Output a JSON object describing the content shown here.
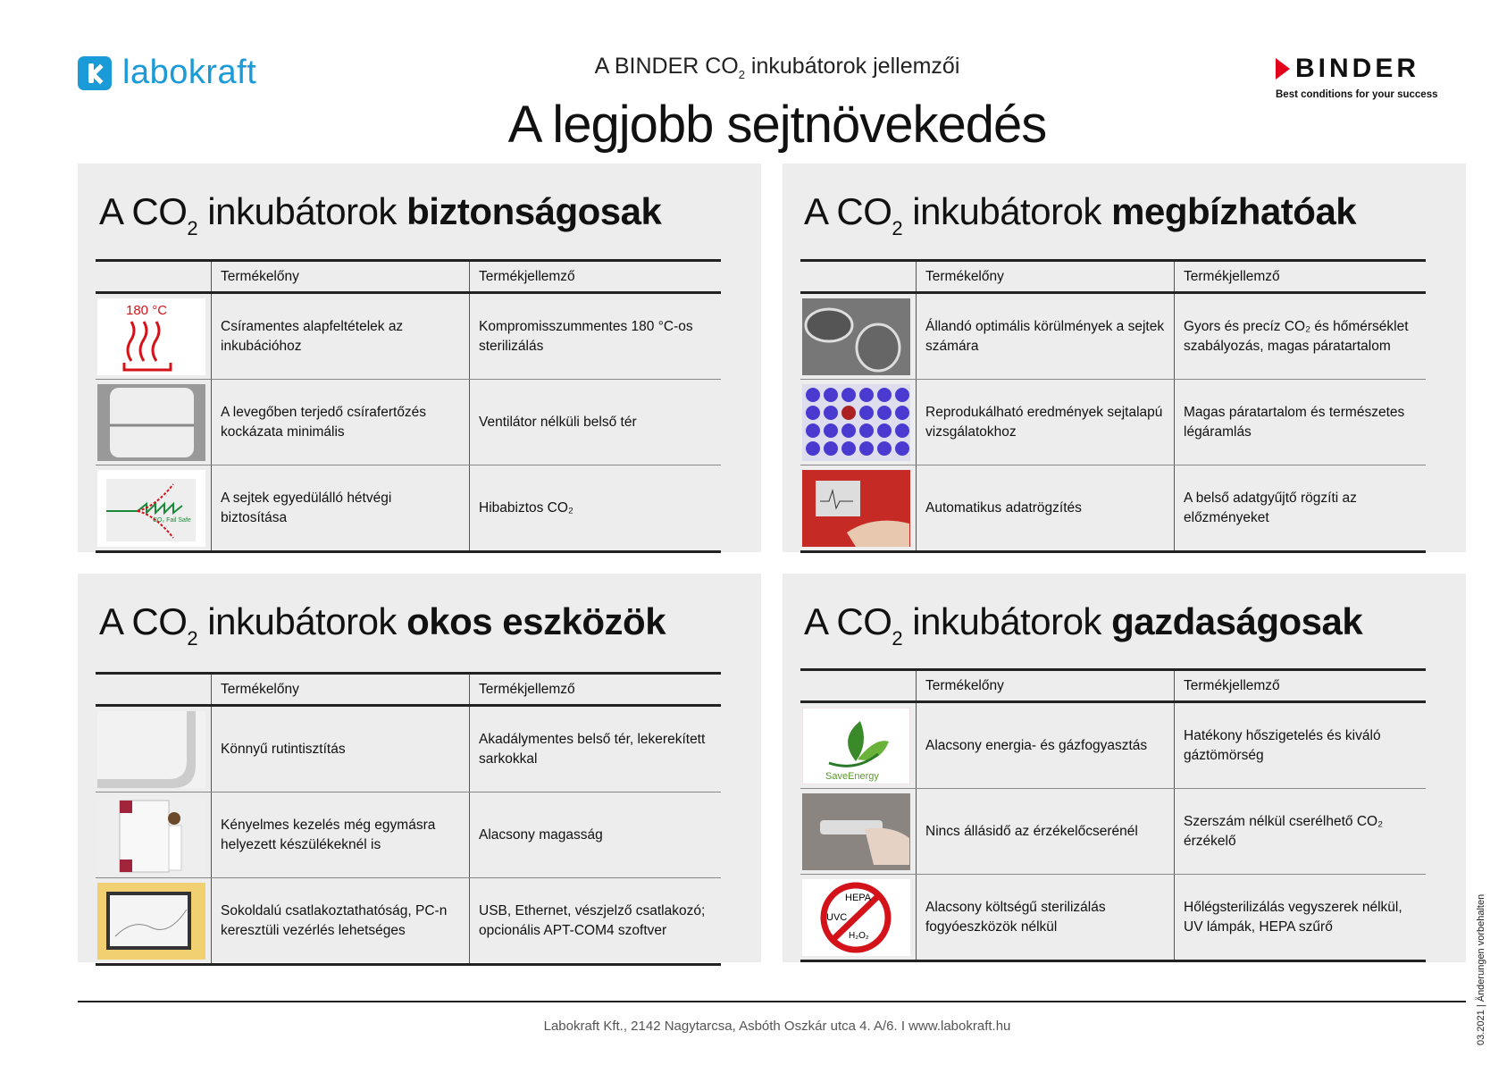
{
  "header": {
    "logo_left": "labokraft",
    "subtitle_pre": "A BINDER CO",
    "subtitle_sub": "2",
    "subtitle_post": " inkubátorok jellemzői",
    "title": "A legjobb sejtnövekedés",
    "logo_right": "BINDER",
    "logo_right_tagline": "Best conditions for your success"
  },
  "colors": {
    "panel_bg": "#ededed",
    "labokraft_blue": "#1a9ad6",
    "binder_red": "#e2001a"
  },
  "panels": [
    {
      "h_pre": "A CO",
      "h_sub": "2",
      "h_mid": " inkubátorok ",
      "h_bold": "biztonságosak",
      "col_benefit": "Termékelőny",
      "col_feature": "Termékjellemző",
      "rows": [
        {
          "icon": "heat-180c-icon",
          "icon_text": "180 °C",
          "benefit": "Csíramentes alapfeltételek az inkubációhoz",
          "feature": "Kompromisszummentes 180 °C-os sterilizálás"
        },
        {
          "icon": "chamber-interior-image",
          "benefit": "A levegőben terjedő csírafertőzés kockázata minimális",
          "feature": "Ventilátor nélküli belső tér"
        },
        {
          "icon": "co2-failsafe-chart-icon",
          "icon_text": "CO₂ Fail Safe",
          "benefit": "A sejtek egyedülálló hétvégi biztosítása",
          "feature": "Hibabiztos CO₂"
        }
      ]
    },
    {
      "h_pre": "A CO",
      "h_sub": "2",
      "h_mid": " inkubátorok ",
      "h_bold": "megbízhatóak",
      "col_benefit": "Termékelőny",
      "col_feature": "Termékjellemző",
      "rows": [
        {
          "icon": "cells-image",
          "benefit": "Állandó optimális körülmények a sejtek számára",
          "feature": "Gyors és precíz CO₂ és hőmérséklet szabályozás, magas páratartalom"
        },
        {
          "icon": "well-plate-image",
          "benefit": "Reprodukálható eredmények sejtalapú vizsgálatokhoz",
          "feature": "Magas páratartalom és természetes légáramlás"
        },
        {
          "icon": "data-logger-image",
          "benefit": "Automatikus adatrögzítés",
          "feature": "A belső adatgyűjtő rögzíti az előzményeket"
        }
      ]
    },
    {
      "h_pre": "A CO",
      "h_sub": "2",
      "h_mid": " inkubátorok ",
      "h_bold": "okos eszközök",
      "col_benefit": "Termékelőny",
      "col_feature": "Termékjellemző",
      "rows": [
        {
          "icon": "rounded-corner-image",
          "benefit": "Könnyű rutintisztítás",
          "feature": "Akadálymentes belső tér, lekerekített sarkokkal"
        },
        {
          "icon": "stacked-units-image",
          "benefit": "Kényelmes kezelés még egymásra helyezett készülékeknél is",
          "feature": "Alacsony magasság"
        },
        {
          "icon": "laptop-software-image",
          "benefit": "Sokoldalú csatlakoztathatóság, PC-n keresztüli vezérlés lehetséges",
          "feature": "USB, Ethernet, vészjelző csatlakozó; opcionális APT-COM4 szoftver"
        }
      ]
    },
    {
      "h_pre": "A CO",
      "h_sub": "2",
      "h_mid": " inkubátorok ",
      "h_bold": "gazdaságosak",
      "col_benefit": "Termékelőny",
      "col_feature": "Termékjellemző",
      "rows": [
        {
          "icon": "save-energy-icon",
          "icon_text": "SaveEnergy",
          "benefit": "Alacsony energia- és gázfogyasztás",
          "feature": "Hatékony hőszigetelés és kiváló gáztömörség"
        },
        {
          "icon": "sensor-replacement-image",
          "benefit": "Nincs állásidő az érzékelőcserénél",
          "feature": "Szerszám nélkül cserélhető CO₂ érzékelő"
        },
        {
          "icon": "no-hepa-uvc-h2o2-icon",
          "icon_text": "HEPA|UVC|H₂O₂",
          "benefit": "Alacsony költségű sterilizálás fogyóeszközök nélkül",
          "feature": "Hőlégsterilizálás vegyszerek nélkül, UV lámpák, HEPA szűrő"
        }
      ]
    }
  ],
  "footer": {
    "address": "Labokraft Kft., 2142 Nagytarcsa, Asbóth Oszkár utca 4. A/6. I www.labokraft.hu",
    "side_note": "03.2021 | Änderungen vorbehalten"
  }
}
